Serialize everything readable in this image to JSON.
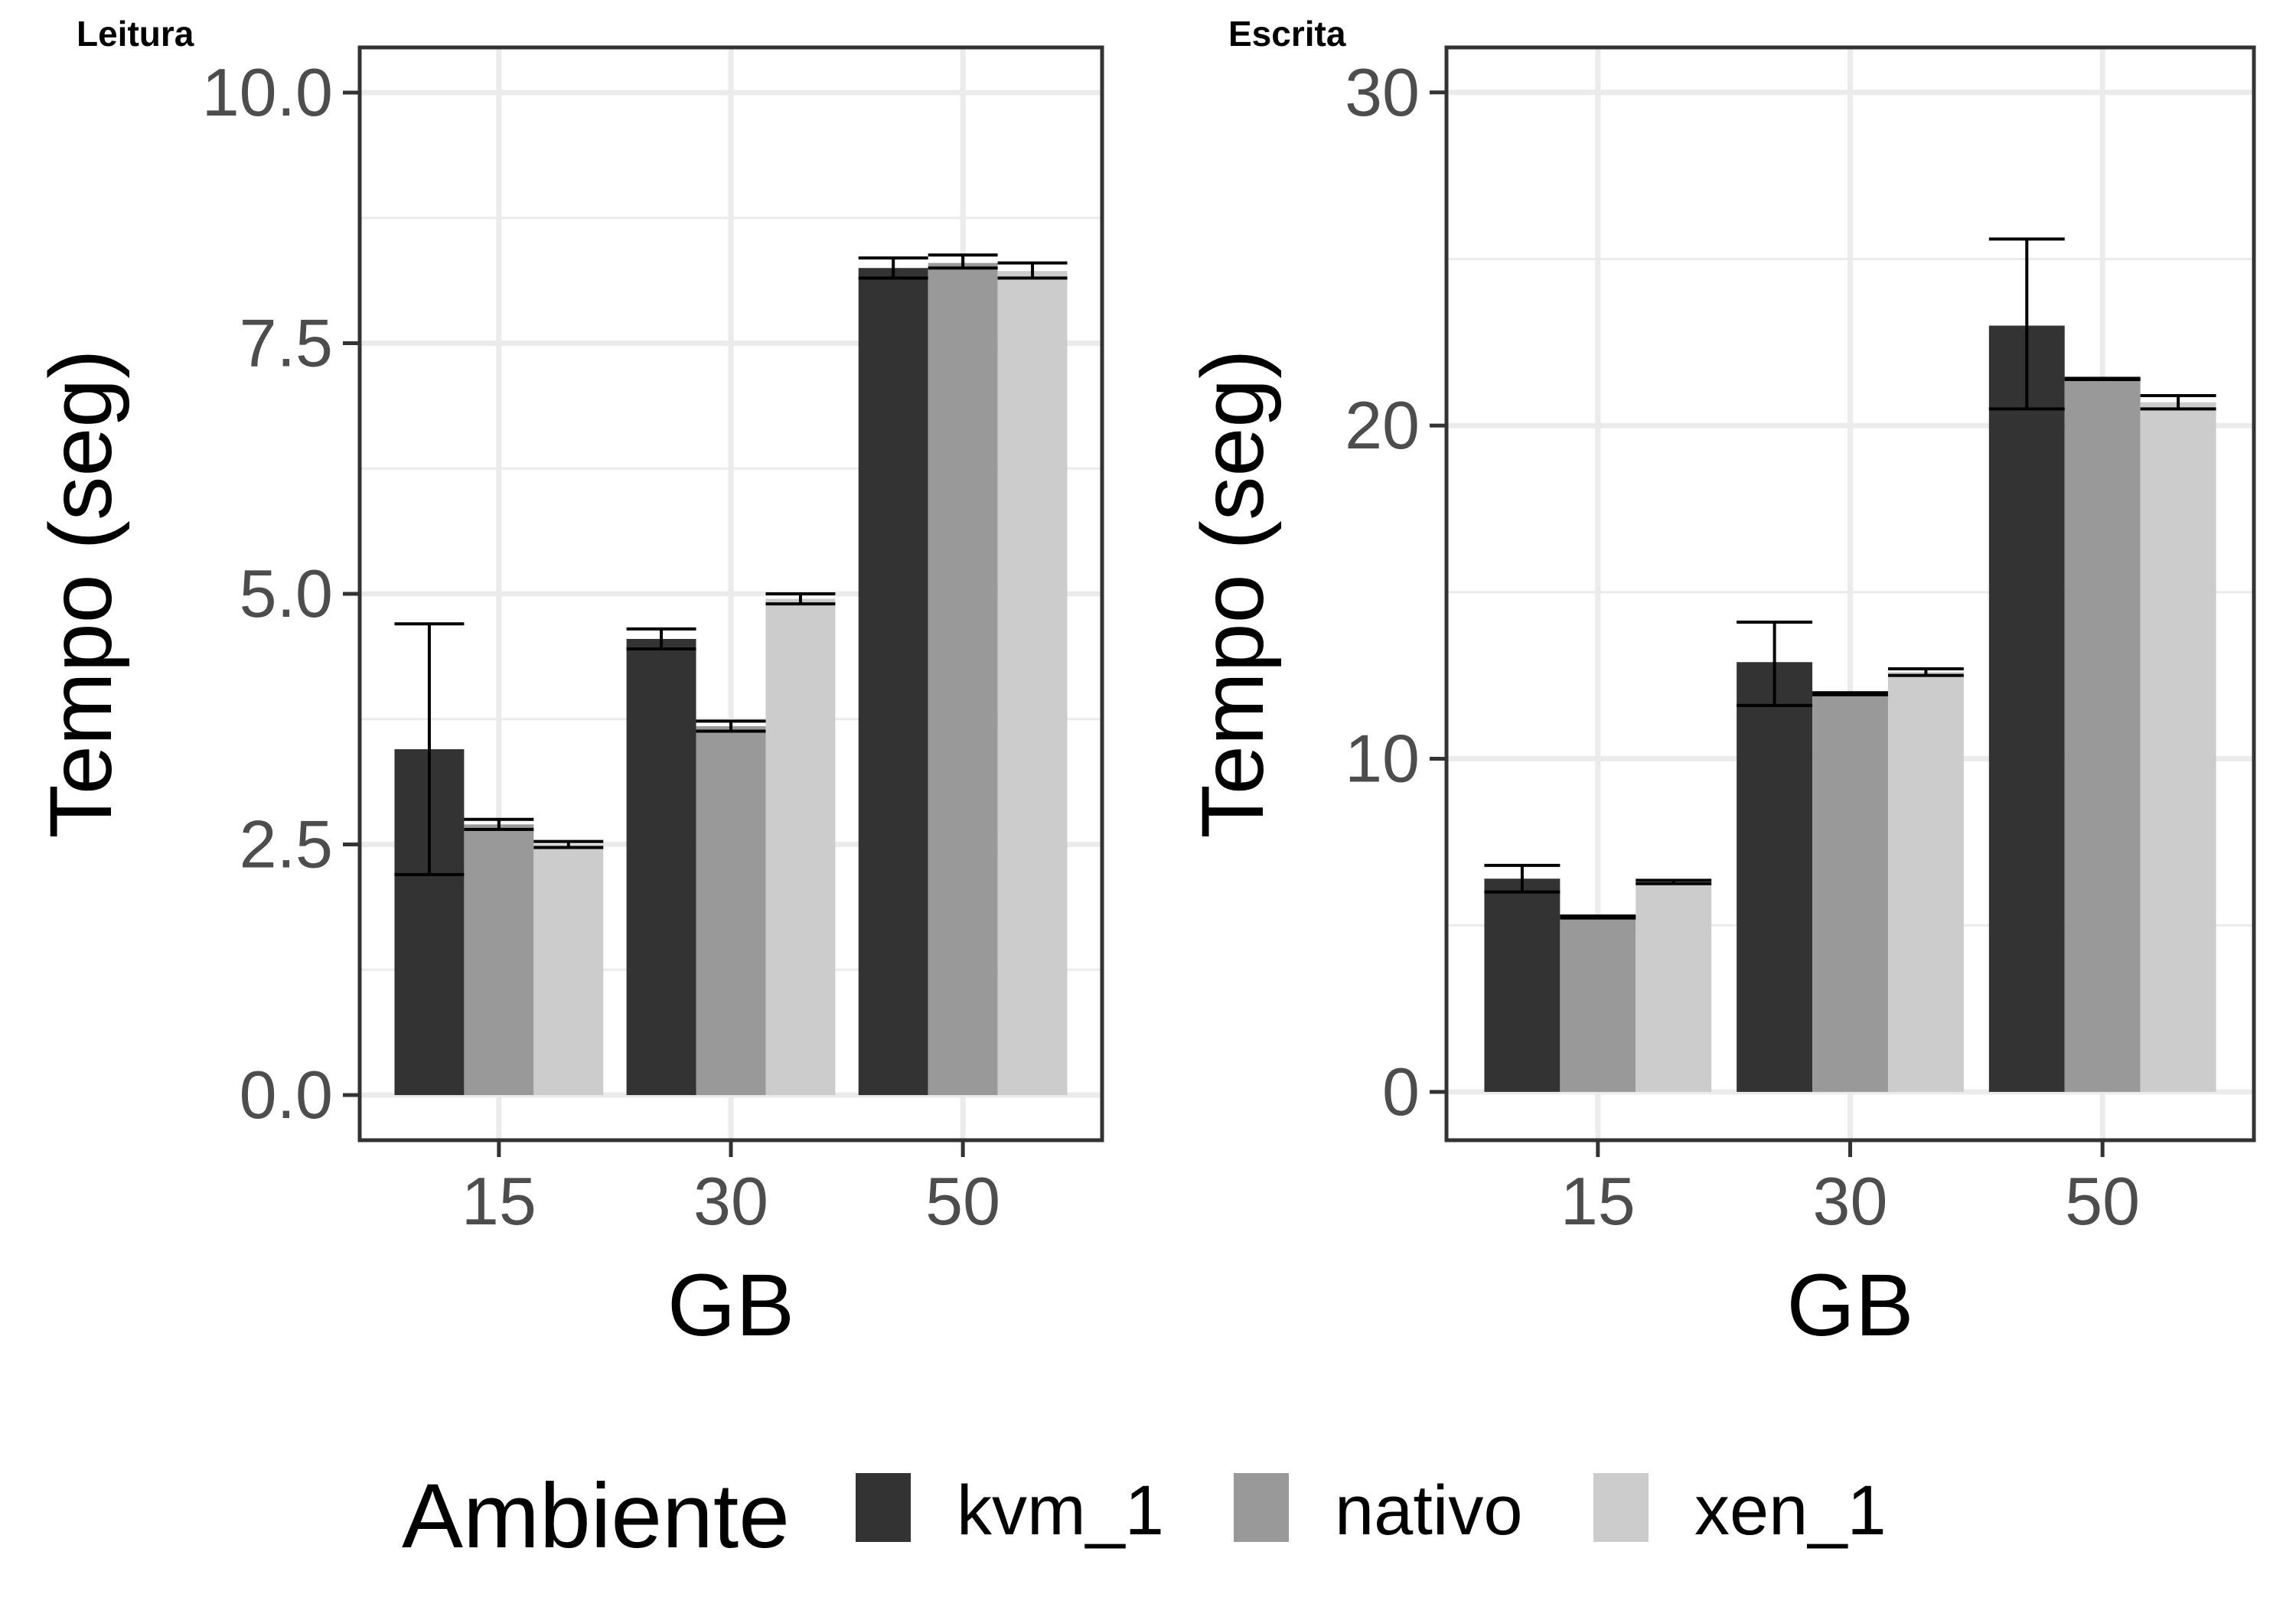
{
  "legend": {
    "title": "Ambiente",
    "items": [
      {
        "label": "kvm_1",
        "color": "#333333"
      },
      {
        "label": "nativo",
        "color": "#999999"
      },
      {
        "label": "xen_1",
        "color": "#cccccc"
      }
    ]
  },
  "chart_data": [
    {
      "type": "bar",
      "title": "Leitura",
      "xlabel": "GB",
      "ylabel": "Tempo (seg)",
      "categories": [
        "15",
        "30",
        "50"
      ],
      "yticks": [
        "0.0",
        "2.5",
        "5.0",
        "7.5",
        "10.0"
      ],
      "ylim": [
        -0.45,
        10.45
      ],
      "series": [
        {
          "name": "kvm_1",
          "values": [
            3.45,
            4.55,
            8.25
          ],
          "err_low": [
            2.2,
            4.45,
            8.15
          ],
          "err_high": [
            4.7,
            4.65,
            8.35
          ]
        },
        {
          "name": "nativo",
          "values": [
            2.7,
            3.68,
            8.3
          ],
          "err_low": [
            2.65,
            3.63,
            8.25
          ],
          "err_high": [
            2.75,
            3.73,
            8.38
          ]
        },
        {
          "name": "xen_1",
          "values": [
            2.5,
            4.95,
            8.22
          ],
          "err_low": [
            2.47,
            4.9,
            8.15
          ],
          "err_high": [
            2.53,
            5.0,
            8.3
          ]
        }
      ]
    },
    {
      "type": "bar",
      "title": "Escrita",
      "xlabel": "GB",
      "ylabel": "Tempo (seg)",
      "categories": [
        "15",
        "30",
        "50"
      ],
      "yticks": [
        "0",
        "10",
        "20",
        "30"
      ],
      "ylim": [
        -1.45,
        31.35
      ],
      "series": [
        {
          "name": "kvm_1",
          "values": [
            6.4,
            12.9,
            23.0
          ],
          "err_low": [
            6.0,
            11.6,
            20.5
          ],
          "err_high": [
            6.8,
            14.1,
            25.6
          ]
        },
        {
          "name": "nativo",
          "values": [
            5.25,
            11.95,
            21.4
          ],
          "err_low": [
            5.22,
            11.92,
            21.38
          ],
          "err_high": [
            5.28,
            11.98,
            21.42
          ]
        },
        {
          "name": "xen_1",
          "values": [
            6.3,
            12.6,
            20.7
          ],
          "err_low": [
            6.25,
            12.5,
            20.5
          ],
          "err_high": [
            6.35,
            12.7,
            20.9
          ]
        }
      ]
    }
  ]
}
